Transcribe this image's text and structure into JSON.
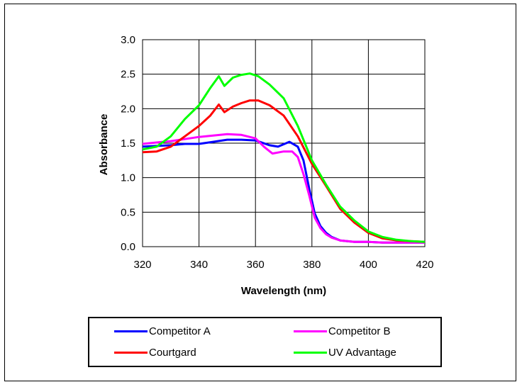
{
  "chart_data": {
    "type": "line",
    "xlabel": "Wavelength (nm)",
    "ylabel": "Absorbance",
    "xlim": [
      320,
      420
    ],
    "ylim": [
      0,
      3
    ],
    "xticks": [
      320,
      340,
      360,
      380,
      400,
      420
    ],
    "yticks": [
      "0.0",
      "0.5",
      "1.0",
      "1.5",
      "2.0",
      "2.5",
      "3.0"
    ],
    "grid": true,
    "legend_position": "bottom",
    "series": [
      {
        "name": "Competitor A",
        "color": "#0000ff",
        "x": [
          320,
          325,
          330,
          335,
          340,
          345,
          350,
          355,
          360,
          365,
          368,
          372,
          375,
          377,
          379,
          381,
          383,
          385,
          387,
          390,
          395,
          400,
          405,
          410,
          415,
          420
        ],
        "y": [
          1.45,
          1.46,
          1.47,
          1.49,
          1.49,
          1.52,
          1.55,
          1.55,
          1.54,
          1.47,
          1.45,
          1.52,
          1.45,
          1.25,
          0.85,
          0.48,
          0.3,
          0.2,
          0.14,
          0.09,
          0.07,
          0.07,
          0.06,
          0.06,
          0.06,
          0.06
        ]
      },
      {
        "name": "Competitor B",
        "color": "#ff00ff",
        "x": [
          320,
          325,
          330,
          335,
          340,
          345,
          350,
          355,
          360,
          363,
          366,
          370,
          373,
          375,
          377,
          379,
          381,
          383,
          385,
          387,
          390,
          395,
          400,
          405,
          410,
          415,
          420
        ],
        "y": [
          1.49,
          1.51,
          1.53,
          1.56,
          1.59,
          1.61,
          1.63,
          1.62,
          1.57,
          1.45,
          1.35,
          1.38,
          1.38,
          1.3,
          1.05,
          0.75,
          0.42,
          0.27,
          0.18,
          0.13,
          0.09,
          0.07,
          0.07,
          0.06,
          0.06,
          0.06,
          0.06
        ]
      },
      {
        "name": "Courtgard",
        "color": "#ff0000",
        "x": [
          320,
          325,
          330,
          335,
          340,
          344,
          347,
          349,
          352,
          355,
          358,
          361,
          365,
          370,
          375,
          380,
          385,
          390,
          395,
          400,
          405,
          410,
          415,
          420
        ],
        "y": [
          1.37,
          1.38,
          1.45,
          1.6,
          1.75,
          1.9,
          2.06,
          1.95,
          2.03,
          2.08,
          2.12,
          2.12,
          2.05,
          1.9,
          1.6,
          1.2,
          0.88,
          0.55,
          0.35,
          0.2,
          0.12,
          0.09,
          0.08,
          0.07
        ]
      },
      {
        "name": "UV Advantage",
        "color": "#00ff00",
        "x": [
          320,
          325,
          330,
          335,
          340,
          344,
          347,
          349,
          352,
          355,
          358,
          361,
          365,
          370,
          375,
          380,
          385,
          390,
          395,
          400,
          405,
          410,
          415,
          420
        ],
        "y": [
          1.41,
          1.45,
          1.6,
          1.85,
          2.05,
          2.3,
          2.47,
          2.33,
          2.45,
          2.49,
          2.51,
          2.47,
          2.35,
          2.15,
          1.75,
          1.25,
          0.9,
          0.58,
          0.38,
          0.22,
          0.14,
          0.1,
          0.08,
          0.07
        ]
      }
    ]
  }
}
